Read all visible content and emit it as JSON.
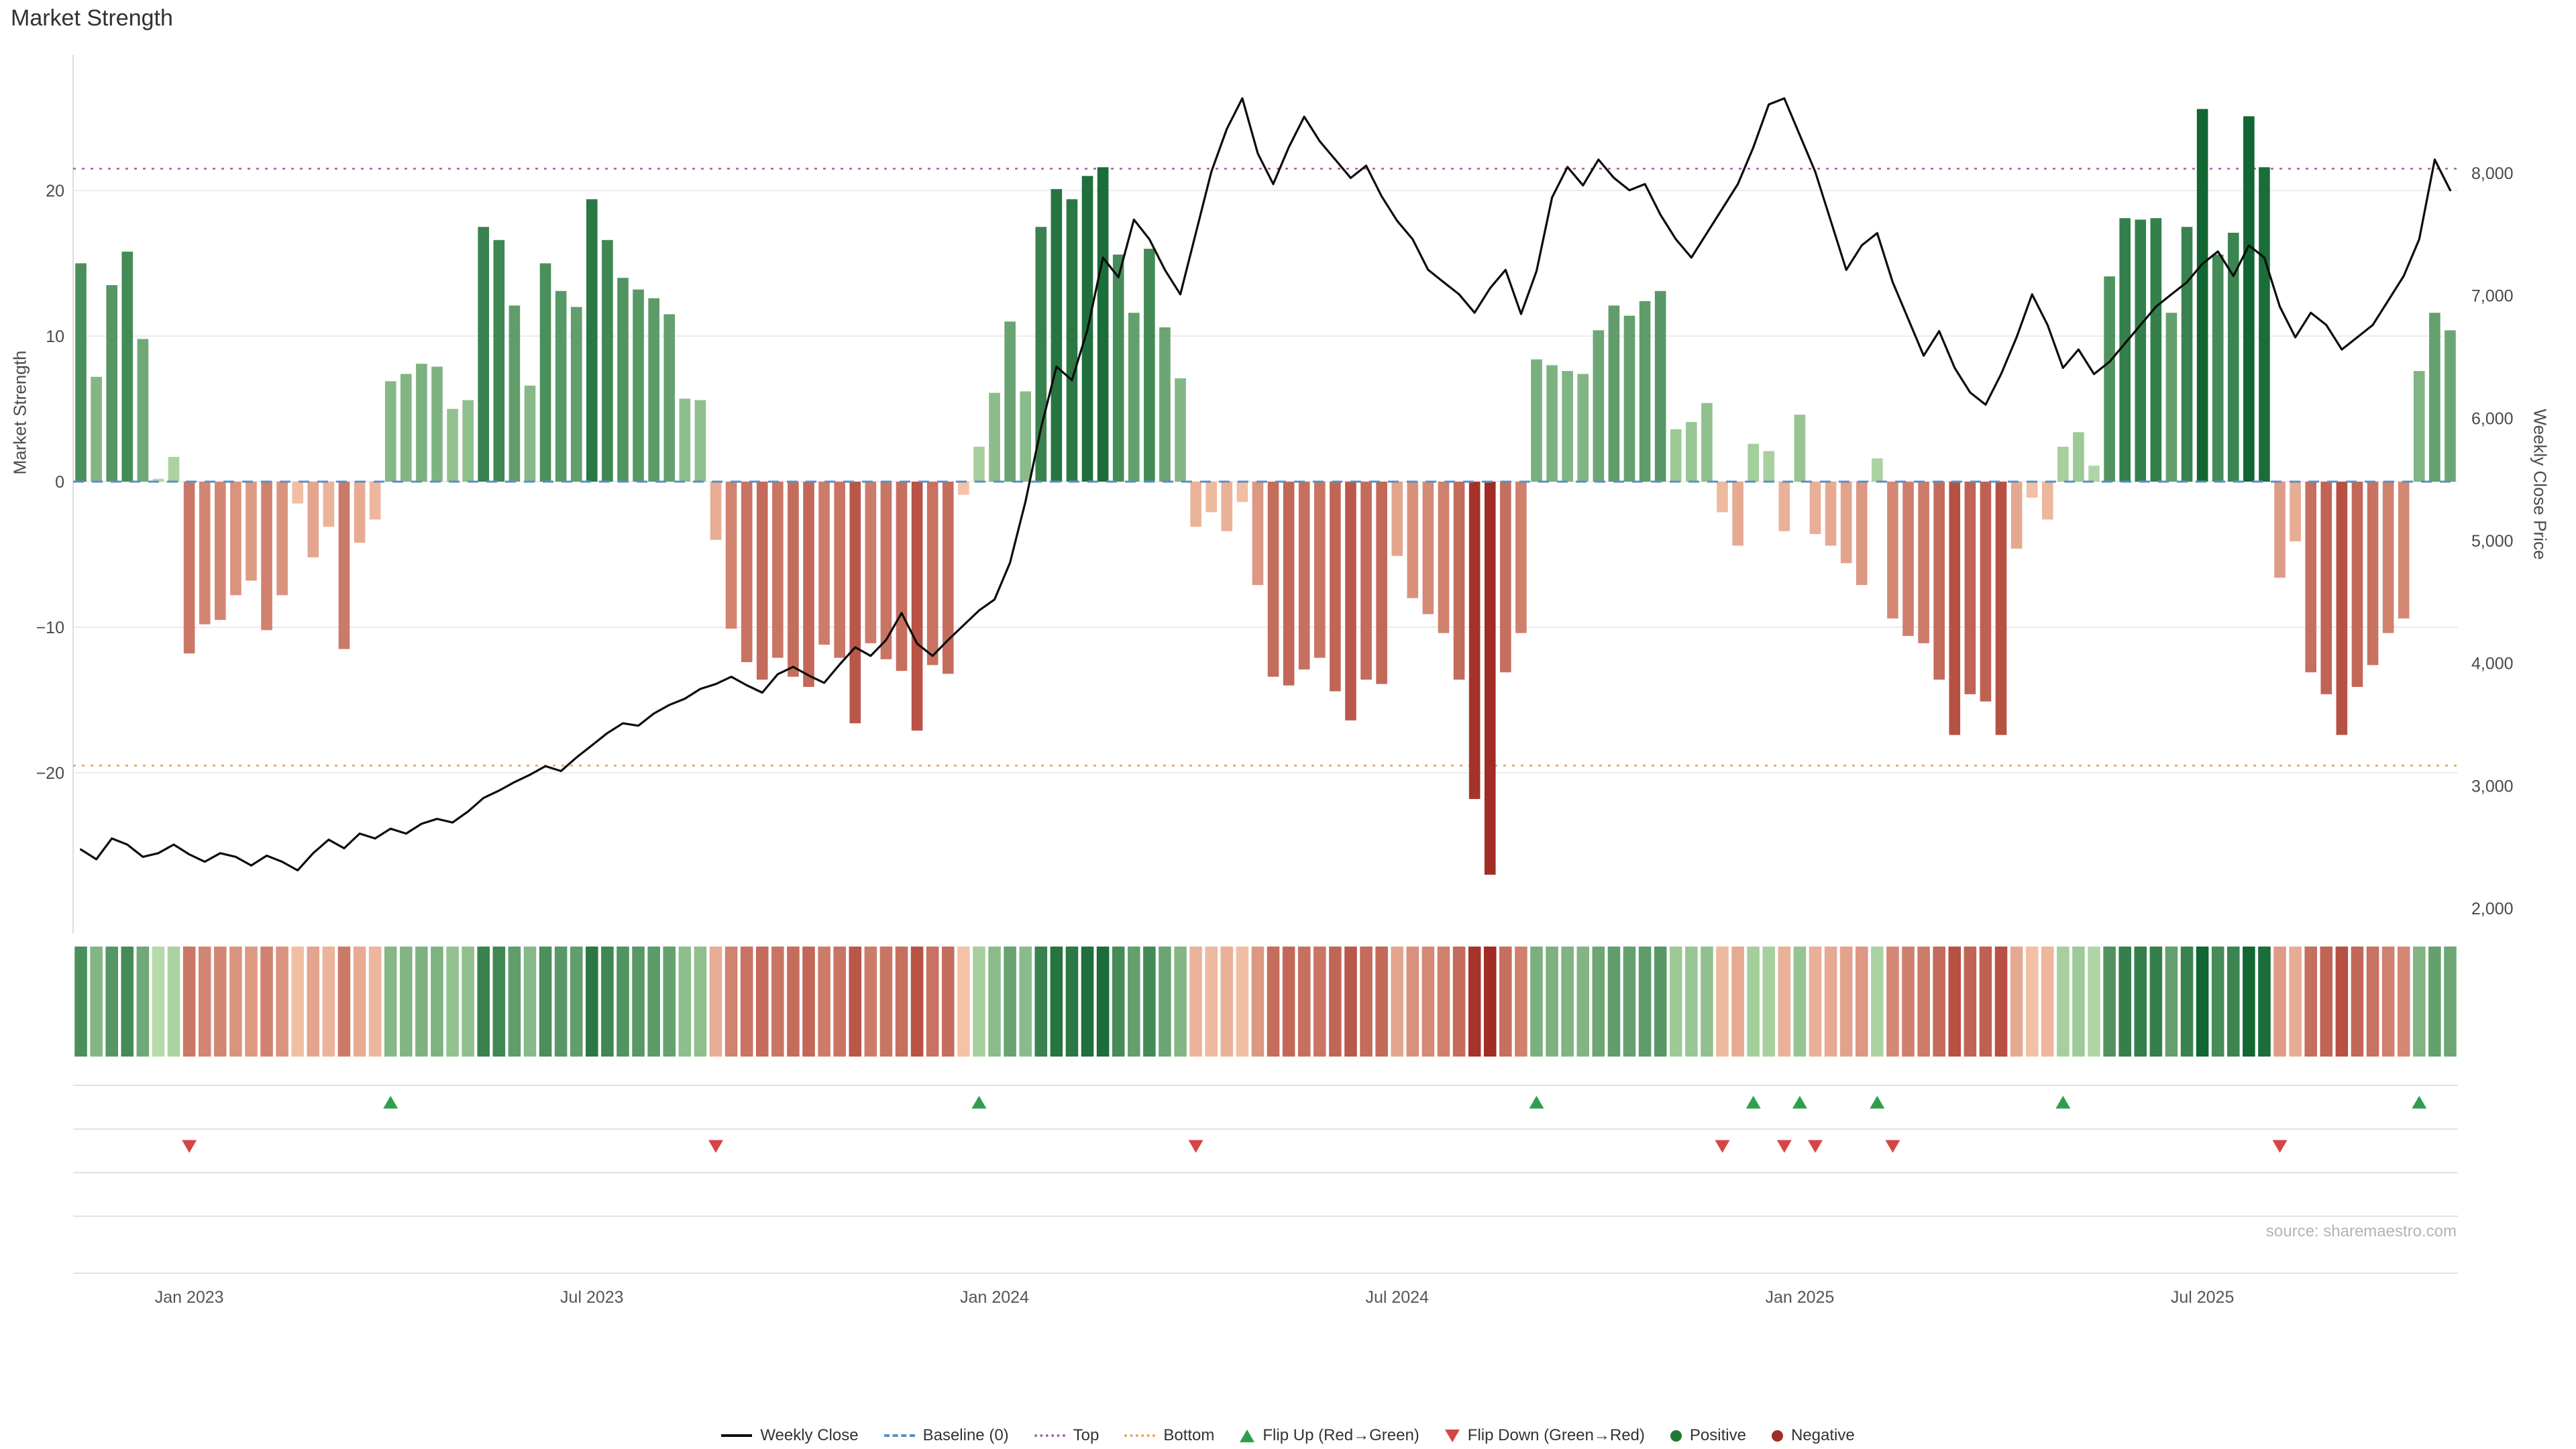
{
  "title": "Market Strength",
  "source": "source: sharemaestro.com",
  "axes": {
    "left_label": "Market Strength",
    "right_label": "Weekly Close Price"
  },
  "legend": {
    "items": [
      {
        "label": "Weekly Close",
        "swatch": "line"
      },
      {
        "label": "Baseline (0)",
        "swatch": "dashed-blue"
      },
      {
        "label": "Top",
        "swatch": "dotted-purple"
      },
      {
        "label": "Bottom",
        "swatch": "dotted-orange"
      },
      {
        "label": "Flip Up (Red→Green)",
        "swatch": "triangle-up"
      },
      {
        "label": "Flip Down (Green→Red)",
        "swatch": "triangle-down"
      },
      {
        "label": "Positive",
        "swatch": "dot-green"
      },
      {
        "label": "Negative",
        "swatch": "dot-red"
      }
    ]
  },
  "colors": {
    "line": "#0c0c0c",
    "baseline": "#5b8fc0",
    "top": "#b05fa8",
    "bottom": "#e8a558",
    "flip_up": "#2f9e4f",
    "flip_down": "#d64545",
    "positive_light": "#b7dbaa",
    "positive_dark": "#116632",
    "negative_light": "#f6c8ac",
    "negative_dark": "#a22b23",
    "grid": "#ececec",
    "panel_grid": "#e2e2e2",
    "tick_text": "#4a4a4a"
  },
  "chart_data": {
    "type": "bar",
    "title": "Market Strength",
    "subtitle": "",
    "series": [
      {
        "name": "Market Strength",
        "type": "bar",
        "axis": "left"
      },
      {
        "name": "Weekly Close",
        "type": "line",
        "axis": "right"
      }
    ],
    "strength_axis": {
      "label": "Market Strength",
      "ticks": [
        20,
        10,
        0,
        -10,
        -20
      ],
      "range": [
        -29,
        27
      ],
      "grid": true
    },
    "price_axis": {
      "label": "Weekly Close Price",
      "ticks": [
        8000,
        7000,
        6000,
        5000,
        4000,
        3000,
        2000
      ],
      "range": [
        1900,
        8900
      ],
      "grid": false
    },
    "reference_lines": {
      "baseline": 0,
      "top": 21.5,
      "bottom": -19.5
    },
    "legend_position": "bottom-center",
    "x_ticks": [
      {
        "label": "Jan 2023",
        "date": "2023-01-06"
      },
      {
        "label": "Jul 2023",
        "date": "2023-07-07"
      },
      {
        "label": "Jan 2024",
        "date": "2024-01-05"
      },
      {
        "label": "Jul 2024",
        "date": "2024-07-05"
      },
      {
        "label": "Jan 2025",
        "date": "2025-01-03"
      },
      {
        "label": "Jul 2025",
        "date": "2025-07-04"
      }
    ],
    "weeks": {
      "dates": [
        "2022-11-18",
        "2022-11-25",
        "2022-12-02",
        "2022-12-09",
        "2022-12-16",
        "2022-12-23",
        "2022-12-30",
        "2023-01-06",
        "2023-01-13",
        "2023-01-20",
        "2023-01-27",
        "2023-02-03",
        "2023-02-10",
        "2023-02-17",
        "2023-02-24",
        "2023-03-03",
        "2023-03-10",
        "2023-03-17",
        "2023-03-24",
        "2023-03-31",
        "2023-04-07",
        "2023-04-14",
        "2023-04-21",
        "2023-04-28",
        "2023-05-05",
        "2023-05-12",
        "2023-05-19",
        "2023-05-26",
        "2023-06-02",
        "2023-06-09",
        "2023-06-16",
        "2023-06-23",
        "2023-06-30",
        "2023-07-07",
        "2023-07-14",
        "2023-07-21",
        "2023-07-28",
        "2023-08-04",
        "2023-08-11",
        "2023-08-18",
        "2023-08-25",
        "2023-09-01",
        "2023-09-08",
        "2023-09-15",
        "2023-09-22",
        "2023-09-29",
        "2023-10-06",
        "2023-10-13",
        "2023-10-20",
        "2023-10-27",
        "2023-11-03",
        "2023-11-10",
        "2023-11-17",
        "2023-11-24",
        "2023-12-01",
        "2023-12-08",
        "2023-12-15",
        "2023-12-22",
        "2023-12-29",
        "2024-01-05",
        "2024-01-12",
        "2024-01-19",
        "2024-01-26",
        "2024-02-02",
        "2024-02-09",
        "2024-02-16",
        "2024-02-23",
        "2024-03-01",
        "2024-03-08",
        "2024-03-15",
        "2024-03-22",
        "2024-03-29",
        "2024-04-05",
        "2024-04-12",
        "2024-04-19",
        "2024-04-26",
        "2024-05-03",
        "2024-05-10",
        "2024-05-17",
        "2024-05-24",
        "2024-05-31",
        "2024-06-07",
        "2024-06-14",
        "2024-06-21",
        "2024-06-28",
        "2024-07-05",
        "2024-07-12",
        "2024-07-19",
        "2024-07-26",
        "2024-08-02",
        "2024-08-09",
        "2024-08-16",
        "2024-08-23",
        "2024-08-30",
        "2024-09-06",
        "2024-09-13",
        "2024-09-20",
        "2024-09-27",
        "2024-10-04",
        "2024-10-11",
        "2024-10-18",
        "2024-10-25",
        "2024-11-01",
        "2024-11-08",
        "2024-11-15",
        "2024-11-22",
        "2024-11-29",
        "2024-12-06",
        "2024-12-13",
        "2024-12-20",
        "2024-12-27",
        "2025-01-03",
        "2025-01-10",
        "2025-01-17",
        "2025-01-24",
        "2025-01-31",
        "2025-02-07",
        "2025-02-14",
        "2025-02-21",
        "2025-02-28",
        "2025-03-07",
        "2025-03-14",
        "2025-03-21",
        "2025-03-28",
        "2025-04-04",
        "2025-04-11",
        "2025-04-18",
        "2025-04-25",
        "2025-05-02",
        "2025-05-09",
        "2025-05-16",
        "2025-05-23",
        "2025-05-30",
        "2025-06-06",
        "2025-06-13",
        "2025-06-20",
        "2025-06-27",
        "2025-07-04",
        "2025-07-11",
        "2025-07-18",
        "2025-07-25",
        "2025-08-01",
        "2025-08-08",
        "2025-08-15",
        "2025-08-22",
        "2025-08-29",
        "2025-09-05",
        "2025-09-12",
        "2025-09-19",
        "2025-09-26",
        "2025-10-03",
        "2025-10-10",
        "2025-10-17",
        "2025-10-24"
      ],
      "strength": [
        15.0,
        7.2,
        13.5,
        15.8,
        9.8,
        0.2,
        1.7,
        -11.8,
        -9.8,
        -9.5,
        -7.8,
        -6.8,
        -10.2,
        -7.8,
        -1.5,
        -5.2,
        -3.1,
        -11.5,
        -4.2,
        -2.6,
        6.9,
        7.4,
        8.1,
        7.9,
        5.0,
        5.6,
        17.5,
        16.6,
        12.1,
        6.6,
        15.0,
        13.1,
        12.0,
        19.4,
        16.6,
        14.0,
        13.2,
        12.6,
        11.5,
        5.7,
        5.6,
        -4.0,
        -10.1,
        -12.4,
        -13.6,
        -12.1,
        -13.4,
        -14.1,
        -11.2,
        -12.1,
        -16.6,
        -11.1,
        -12.2,
        -13.0,
        -17.1,
        -12.6,
        -13.2,
        -0.9,
        2.4,
        6.1,
        11.0,
        6.2,
        17.5,
        20.1,
        19.4,
        21.0,
        21.6,
        15.6,
        11.6,
        16.0,
        10.6,
        7.1,
        -3.1,
        -2.1,
        -3.4,
        -1.4,
        -7.1,
        -13.4,
        -14.0,
        -12.9,
        -12.1,
        -14.4,
        -16.4,
        -13.6,
        -13.9,
        -5.1,
        -8.0,
        -9.1,
        -10.4,
        -13.6,
        -21.8,
        -27.0,
        -13.1,
        -10.4,
        8.4,
        8.0,
        7.6,
        7.4,
        10.4,
        12.1,
        11.4,
        12.4,
        13.1,
        3.6,
        4.1,
        5.4,
        -2.1,
        -4.4,
        2.6,
        2.1,
        -3.4,
        4.6,
        -3.6,
        -4.4,
        -5.6,
        -7.1,
        1.6,
        -9.4,
        -10.6,
        -11.1,
        -13.6,
        -17.4,
        -14.6,
        -15.1,
        -17.4,
        -4.6,
        -1.1,
        -2.6,
        2.4,
        3.4,
        1.1,
        14.1,
        18.1,
        18.0,
        18.1,
        11.6,
        17.5,
        25.6,
        15.6,
        17.1,
        25.1,
        21.6,
        -6.6,
        -4.1,
        -13.1,
        -14.6,
        -17.4,
        -14.1,
        -12.6,
        -10.4,
        -9.4,
        7.6,
        11.6,
        10.4
      ],
      "price": [
        2480,
        2400,
        2570,
        2520,
        2420,
        2450,
        2520,
        2440,
        2380,
        2450,
        2420,
        2350,
        2430,
        2380,
        2310,
        2450,
        2560,
        2490,
        2610,
        2570,
        2650,
        2610,
        2690,
        2730,
        2700,
        2790,
        2900,
        2960,
        3030,
        3090,
        3160,
        3120,
        3230,
        3330,
        3430,
        3510,
        3490,
        3590,
        3660,
        3710,
        3790,
        3830,
        3890,
        3820,
        3760,
        3910,
        3970,
        3900,
        3840,
        3990,
        4130,
        4060,
        4190,
        4410,
        4160,
        4060,
        4190,
        4310,
        4430,
        4520,
        4820,
        5320,
        5920,
        6420,
        6310,
        6720,
        7310,
        7150,
        7620,
        7460,
        7210,
        7010,
        7510,
        8010,
        8360,
        8610,
        8160,
        7910,
        8210,
        8460,
        8260,
        8110,
        7960,
        8060,
        7810,
        7610,
        7460,
        7210,
        7110,
        7010,
        6860,
        7060,
        7210,
        6850,
        7200,
        7800,
        8050,
        7900,
        8110,
        7960,
        7860,
        7910,
        7660,
        7460,
        7310,
        7510,
        7710,
        7910,
        8210,
        8560,
        8610,
        8310,
        8010,
        7610,
        7210,
        7410,
        7510,
        7110,
        6810,
        6510,
        6710,
        6410,
        6210,
        6110,
        6360,
        6660,
        7010,
        6760,
        6410,
        6560,
        6360,
        6460,
        6610,
        6760,
        6910,
        7010,
        7110,
        7260,
        7360,
        7160,
        7410,
        7310,
        6910,
        6660,
        6860,
        6760,
        6560,
        6660,
        6760,
        6960,
        7160,
        7460,
        8110,
        7860
      ]
    },
    "flip_up_dates": [
      "2023-04-07",
      "2023-12-29",
      "2024-09-06",
      "2024-12-13",
      "2025-01-03",
      "2025-02-07",
      "2025-05-02",
      "2025-10-10"
    ],
    "flip_down_dates": [
      "2023-01-06",
      "2023-09-01",
      "2024-04-05",
      "2024-11-29",
      "2024-12-27",
      "2025-01-10",
      "2025-02-14",
      "2025-08-08"
    ]
  }
}
